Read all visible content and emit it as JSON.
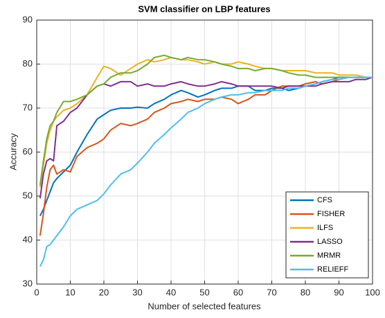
{
  "chart_data": {
    "type": "line",
    "title": "SVM classifier on LBP features",
    "xlabel": "Number of selected features",
    "ylabel": "Accuracy",
    "x": [
      1,
      2,
      3,
      4,
      5,
      6,
      8,
      10,
      12,
      15,
      18,
      20,
      22,
      25,
      28,
      30,
      33,
      35,
      38,
      40,
      43,
      45,
      48,
      50,
      53,
      55,
      58,
      60,
      63,
      65,
      68,
      70,
      73,
      75,
      78,
      80,
      83,
      85,
      88,
      90,
      93,
      95,
      98,
      100
    ],
    "series": [
      {
        "name": "CFS",
        "color": "#0072bd",
        "values": [
          45.5,
          47,
          49,
          51,
          53,
          54,
          55.5,
          57,
          60,
          64,
          67.5,
          68.5,
          69.5,
          70,
          70,
          70.2,
          70,
          71,
          72,
          73,
          74,
          73.5,
          72.5,
          73,
          74,
          74.5,
          74.5,
          75,
          75,
          74,
          74,
          74.5,
          74.5,
          74,
          74.5,
          75,
          75.5,
          76,
          76.5,
          77,
          77,
          77,
          77,
          77
        ]
      },
      {
        "name": "FISHER",
        "color": "#d95319",
        "values": [
          41,
          46,
          52,
          56,
          57,
          55,
          56,
          55.5,
          59,
          61,
          62,
          63,
          65,
          66.5,
          66,
          66.5,
          67.5,
          69,
          70,
          71,
          71.5,
          72,
          71.5,
          72,
          72,
          72.5,
          72,
          71,
          72,
          73,
          73,
          74,
          75,
          75,
          75,
          75.5,
          76,
          75.5,
          76,
          76.5,
          77,
          77,
          77,
          77
        ]
      },
      {
        "name": "ILFS",
        "color": "#edb120",
        "values": [
          52,
          57,
          62,
          65,
          67,
          68,
          69.5,
          70,
          71,
          73,
          77,
          79.5,
          79,
          77.5,
          79,
          80,
          81,
          80.5,
          81,
          81.5,
          81,
          81,
          80.5,
          80,
          80.5,
          80,
          80,
          80.5,
          80,
          79.5,
          79,
          79,
          78.5,
          78.5,
          78.5,
          78.5,
          78,
          78,
          78,
          77.5,
          77.5,
          77.5,
          77,
          77
        ]
      },
      {
        "name": "LASSO",
        "color": "#7e2f8e",
        "values": [
          49.5,
          55,
          58,
          58.5,
          58,
          66,
          67,
          69,
          70,
          73,
          75,
          75.5,
          75,
          76,
          76,
          75,
          75.5,
          75,
          75,
          75.5,
          76,
          75.5,
          75,
          75,
          75.5,
          76,
          75.5,
          75,
          75,
          75,
          75,
          75,
          74.5,
          75,
          75,
          75,
          75,
          75.5,
          76,
          76,
          76,
          76.5,
          76.5,
          77
        ]
      },
      {
        "name": "MRMR",
        "color": "#77ac30",
        "values": [
          52.5,
          58,
          63,
          66,
          67,
          69,
          71.5,
          71.5,
          72,
          73,
          75,
          75.5,
          77,
          78,
          78,
          78.5,
          80,
          81.5,
          82,
          81.5,
          81,
          81.5,
          81,
          81,
          80.5,
          80,
          79.5,
          79,
          79,
          78.5,
          79,
          79,
          78.5,
          78,
          77.5,
          77.5,
          77,
          77,
          77,
          77,
          77,
          77,
          77,
          77
        ]
      },
      {
        "name": "RELIEFF",
        "color": "#4dbeee",
        "values": [
          34,
          35.5,
          38.5,
          39,
          40,
          41,
          43,
          45.5,
          47,
          48,
          49,
          50.5,
          52.5,
          55,
          56,
          57.5,
          60,
          62,
          64,
          65.5,
          67.5,
          69,
          70,
          71,
          72,
          72.5,
          73,
          73,
          73.5,
          73.5,
          74,
          74,
          74,
          74.5,
          74.5,
          75,
          75.5,
          76,
          76.5,
          76.5,
          77,
          77,
          77,
          77
        ]
      }
    ],
    "xlim": [
      0,
      100
    ],
    "xticks": [
      0,
      10,
      20,
      30,
      40,
      50,
      60,
      70,
      80,
      90,
      100
    ],
    "ylim": [
      30,
      90
    ],
    "yticks": [
      30,
      40,
      50,
      60,
      70,
      80,
      90
    ],
    "grid": true,
    "legend": "southeast"
  }
}
